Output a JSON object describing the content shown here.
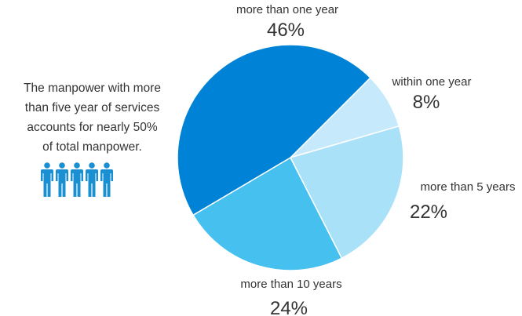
{
  "side_note": {
    "lines": [
      "The manpower with more",
      "than five year of services",
      "accounts for nearly 50%",
      "of total manpower."
    ],
    "icon": "people-icon",
    "icon_count": 5,
    "icon_color": "#1a8fd1"
  },
  "chart_data": {
    "type": "pie",
    "title": "",
    "start_angle_deg": 45,
    "direction": "clockwise",
    "slices": [
      {
        "label": "within one year",
        "value": 8,
        "value_label": "8%",
        "color": "#c6eafb"
      },
      {
        "label": "more than 5 years",
        "value": 22,
        "value_label": "22%",
        "color": "#a9e1f8"
      },
      {
        "label": "more than 10 years",
        "value": 24,
        "value_label": "24%",
        "color": "#46c1ef"
      },
      {
        "label": "more than one year",
        "value": 46,
        "value_label": "46%",
        "color": "#0083d6"
      }
    ],
    "legend": "none",
    "labels": "outside"
  }
}
